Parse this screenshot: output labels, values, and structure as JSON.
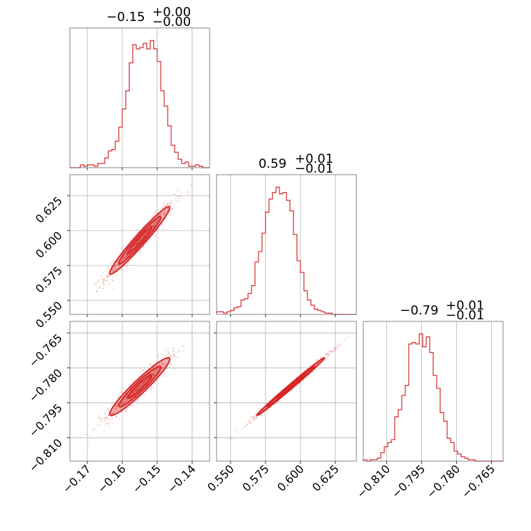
{
  "chart_data": {
    "type": "corner",
    "parameters": [
      {
        "index": 0,
        "title_median": "−0.15",
        "title_plus": "+0.00",
        "title_minus": "−0.00",
        "range": [
          -0.175,
          -0.135
        ],
        "ticks": [
          -0.17,
          -0.16,
          -0.15,
          -0.14
        ],
        "tick_labels": [
          "−0.17",
          "−0.16",
          "−0.15",
          "−0.14"
        ],
        "histogram": [
          0,
          0,
          0,
          0.02,
          0.01,
          0.02,
          0.02,
          0.01,
          0.03,
          0.03,
          0.07,
          0.12,
          0.13,
          0.19,
          0.29,
          0.42,
          0.55,
          0.75,
          0.88,
          0.85,
          0.86,
          0.89,
          0.85,
          0.91,
          0.85,
          0.76,
          0.55,
          0.44,
          0.3,
          0.16,
          0.11,
          0.06,
          0.03,
          0.04,
          0.01,
          0.01,
          0.02,
          0.01,
          0.0,
          0.0
        ]
      },
      {
        "index": 1,
        "title_median": "0.59",
        "title_plus": "+0.01",
        "title_minus": "−0.01",
        "range": [
          0.54,
          0.64
        ],
        "ticks": [
          0.55,
          0.575,
          0.6,
          0.625
        ],
        "tick_labels": [
          "0.550",
          "0.575",
          "0.600",
          "0.625"
        ],
        "histogram": [
          0.02,
          0.02,
          0.01,
          0.02,
          0.03,
          0.05,
          0.06,
          0.11,
          0.12,
          0.16,
          0.22,
          0.4,
          0.48,
          0.62,
          0.78,
          0.88,
          0.93,
          0.97,
          0.92,
          0.93,
          0.87,
          0.79,
          0.61,
          0.41,
          0.32,
          0.18,
          0.11,
          0.07,
          0.04,
          0.03,
          0.02,
          0.01,
          0.01,
          0.0,
          0.0,
          0.0,
          0.0,
          0.0,
          0.0,
          0.0
        ]
      },
      {
        "index": 2,
        "title_median": "−0.79",
        "title_plus": "+0.01",
        "title_minus": "−0.01",
        "range": [
          -0.82,
          -0.76
        ],
        "ticks": [
          -0.81,
          -0.795,
          -0.78,
          -0.765
        ],
        "tick_labels": [
          "−0.810",
          "−0.795",
          "−0.780",
          "−0.765"
        ],
        "histogram": [
          0.01,
          0.0,
          0.01,
          0.01,
          0.02,
          0.06,
          0.1,
          0.13,
          0.15,
          0.31,
          0.36,
          0.46,
          0.53,
          0.82,
          0.83,
          0.82,
          0.89,
          0.8,
          0.87,
          0.76,
          0.6,
          0.51,
          0.34,
          0.28,
          0.16,
          0.13,
          0.07,
          0.05,
          0.03,
          0.02,
          0.01,
          0.01,
          0.0,
          0.0,
          0.0,
          0.0,
          0.0,
          0.0,
          0.0,
          0.0
        ]
      }
    ],
    "pairs": [
      {
        "x": 0,
        "y": 1,
        "center": [
          -0.155,
          0.593
        ],
        "sd": [
          0.0043,
          0.0121
        ],
        "corr": 0.97
      },
      {
        "x": 0,
        "y": 2,
        "center": [
          -0.155,
          -0.788
        ],
        "sd": [
          0.0043,
          0.0062
        ],
        "corr": 0.95
      },
      {
        "x": 1,
        "y": 2,
        "center": [
          0.593,
          -0.788
        ],
        "sd": [
          0.0121,
          0.0062
        ],
        "corr": 0.995
      }
    ],
    "grid": true,
    "color": "#d62728"
  }
}
